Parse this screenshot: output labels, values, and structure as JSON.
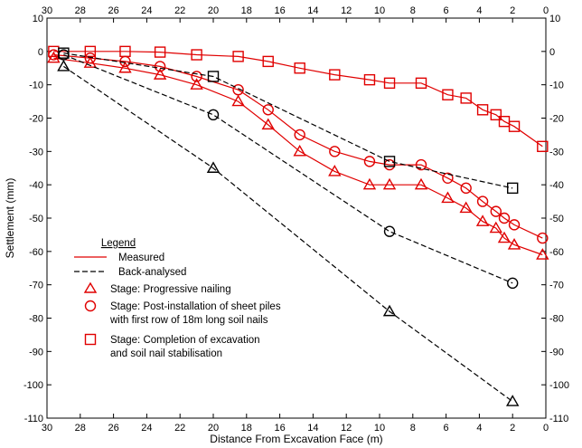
{
  "chart_data": {
    "type": "line",
    "xlabel": "Distance From Excavation Face (m)",
    "ylabel": "Settlement (mm)",
    "xlim": [
      30,
      0
    ],
    "ylim": [
      -110,
      10
    ],
    "x_ticks": [
      "30",
      "28",
      "26",
      "24",
      "22",
      "20",
      "18",
      "16",
      "14",
      "12",
      "10",
      "8",
      "6",
      "4",
      "2",
      "0"
    ],
    "y_ticks": [
      "10",
      "0",
      "-10",
      "-20",
      "-30",
      "-40",
      "-50",
      "-60",
      "-70",
      "-80",
      "-90",
      "-100",
      "-110"
    ],
    "grid": false,
    "legend": {
      "placement": "bottom-left",
      "title": "Legend",
      "measured": "Measured",
      "back_analysed": "Back-analysed",
      "stage1": "Stage: Progressive nailing",
      "stage2_line1": "Stage: Post-installation of sheet piles",
      "stage2_line2": "with first row of 18m long soil nails",
      "stage3_line1": "Stage: Completion of excavation",
      "stage3_line2": "and soil nail stabilisation"
    },
    "colors": {
      "measured": "#e00000",
      "back_analysed": "#000000"
    },
    "series": [
      {
        "name": "Stage: Progressive nailing",
        "style": "measured",
        "marker": "triangle",
        "x": [
          29.6,
          27.4,
          25.3,
          23.2,
          21.0,
          18.5,
          16.7,
          14.8,
          12.7,
          10.6,
          9.4,
          7.5,
          5.9,
          4.8,
          3.8,
          3.0,
          2.5,
          1.9,
          0.2
        ],
        "y": [
          -2,
          -3.5,
          -5,
          -7,
          -10,
          -15,
          -22,
          -30,
          -36,
          -40,
          -40,
          -40,
          -44,
          -47,
          -51,
          -53,
          -56,
          -58,
          -61
        ]
      },
      {
        "name": "Stage: Post-installation of sheet piles with first row of 18m long soil nails",
        "style": "measured",
        "marker": "circle",
        "x": [
          29.6,
          27.4,
          25.3,
          23.2,
          21.0,
          18.5,
          16.7,
          14.8,
          12.7,
          10.6,
          9.4,
          7.5,
          5.9,
          4.8,
          3.8,
          3.0,
          2.5,
          1.9,
          0.2
        ],
        "y": [
          -1,
          -2,
          -3,
          -4.5,
          -7.5,
          -11.5,
          -17.5,
          -25,
          -30,
          -33,
          -34,
          -34,
          -38,
          -41,
          -45,
          -48,
          -50,
          -52,
          -56
        ]
      },
      {
        "name": "Stage: Completion of excavation and soil nail stabilisation",
        "style": "measured",
        "marker": "square",
        "x": [
          29.6,
          27.4,
          25.3,
          23.2,
          21.0,
          18.5,
          16.7,
          14.8,
          12.7,
          10.6,
          9.4,
          7.5,
          5.9,
          4.8,
          3.8,
          3.0,
          2.5,
          1.9,
          0.2
        ],
        "y": [
          0,
          0,
          0,
          -0.2,
          -1,
          -1.5,
          -3,
          -5,
          -7,
          -8.5,
          -9.5,
          -9.5,
          -13,
          -14,
          -17.5,
          -19,
          -21,
          -22.5,
          -28.5
        ]
      },
      {
        "name": "Stage: Progressive nailing",
        "style": "back_analysed",
        "marker": "triangle",
        "x": [
          29.0,
          20.0,
          9.4,
          2.0
        ],
        "y": [
          -4.5,
          -35,
          -78,
          -105
        ]
      },
      {
        "name": "Stage: Post-installation of sheet piles with first row of 18m long soil nails",
        "style": "back_analysed",
        "marker": "circle",
        "x": [
          29.0,
          20.0,
          9.4,
          2.0
        ],
        "y": [
          -1,
          -19,
          -54,
          -69.5
        ]
      },
      {
        "name": "Stage: Completion of excavation and soil nail stabilisation",
        "style": "back_analysed",
        "marker": "square",
        "x": [
          29.0,
          20.0,
          9.4,
          2.0
        ],
        "y": [
          -0.5,
          -7.5,
          -33,
          -41
        ]
      }
    ]
  }
}
